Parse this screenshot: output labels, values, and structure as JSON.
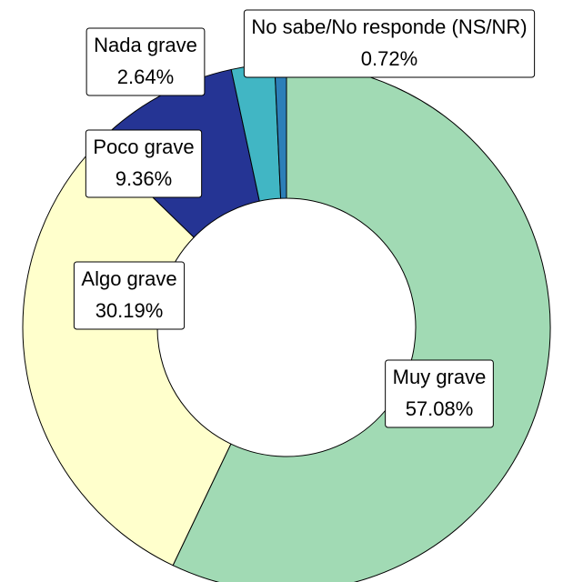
{
  "chart_data": {
    "type": "donut",
    "categories": [
      "Muy grave",
      "Algo grave",
      "Poco grave",
      "Nada grave",
      "No sabe/No responde (NS/NR)"
    ],
    "values": [
      57.08,
      30.19,
      9.36,
      2.64,
      0.72
    ],
    "value_labels": [
      "57.08%",
      "30.19%",
      "9.36%",
      "2.64%",
      "0.72%"
    ],
    "colors": [
      "#a1dab4",
      "#ffffcc",
      "#253494",
      "#41b6c4",
      "#2c7fb8"
    ]
  }
}
